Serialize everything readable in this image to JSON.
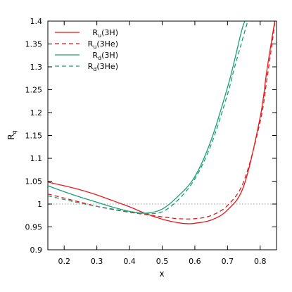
{
  "chart_data": {
    "type": "line",
    "xlabel": "x",
    "ylabel": "R",
    "ylabel_sub": "q",
    "xlim": [
      0.15,
      0.85
    ],
    "ylim": [
      0.9,
      1.4
    ],
    "xticks": [
      0.2,
      0.3,
      0.4,
      0.5,
      0.6,
      0.7,
      0.8
    ],
    "yticks": [
      0.9,
      0.95,
      1.0,
      1.05,
      1.1,
      1.15,
      1.2,
      1.25,
      1.3,
      1.35,
      1.4
    ],
    "xtick_labels": [
      "0.2",
      "0.3",
      "0.4",
      "0.5",
      "0.6",
      "0.7",
      "0.8"
    ],
    "ytick_labels": [
      "0.9",
      "0.95",
      "1",
      "1.05",
      "1.1",
      "1.15",
      "1.2",
      "1.25",
      "1.3",
      "1.35",
      "1.4"
    ],
    "grid": false,
    "legend_placement": "top-left",
    "reference_line": {
      "y": 1.0,
      "style": "dotted",
      "color": "#999999"
    },
    "series": [
      {
        "name": "Ru(3H)",
        "label_main": "R",
        "label_sub": "u",
        "label_tail": "(3H)",
        "color": "#e41a1c",
        "dash": "solid",
        "x": [
          0.15,
          0.2,
          0.25,
          0.3,
          0.35,
          0.4,
          0.45,
          0.5,
          0.55,
          0.58,
          0.6,
          0.65,
          0.7,
          0.75,
          0.8,
          0.82,
          0.84,
          0.845
        ],
        "y": [
          1.048,
          1.04,
          1.031,
          1.02,
          1.007,
          0.994,
          0.979,
          0.967,
          0.959,
          0.957,
          0.958,
          0.965,
          0.987,
          1.04,
          1.19,
          1.29,
          1.38,
          1.4
        ]
      },
      {
        "name": "Ru(3He)",
        "label_main": "R",
        "label_sub": "u",
        "label_tail": "(3He)",
        "color": "#e41a1c",
        "dash": "6,4",
        "x": [
          0.15,
          0.2,
          0.25,
          0.3,
          0.35,
          0.4,
          0.45,
          0.5,
          0.55,
          0.6,
          0.65,
          0.7,
          0.75,
          0.8,
          0.82,
          0.84,
          0.845
        ],
        "y": [
          1.022,
          1.013,
          1.004,
          0.995,
          0.988,
          0.982,
          0.977,
          0.972,
          0.968,
          0.968,
          0.975,
          0.997,
          1.05,
          1.18,
          1.27,
          1.37,
          1.4
        ]
      },
      {
        "name": "Rd(3H)",
        "label_main": "R",
        "label_sub": "d",
        "label_tail": "(3H)",
        "color": "#1a9e77",
        "dash": "solid",
        "x": [
          0.15,
          0.2,
          0.25,
          0.3,
          0.35,
          0.4,
          0.45,
          0.5,
          0.55,
          0.6,
          0.65,
          0.7,
          0.72,
          0.74,
          0.75,
          0.755
        ],
        "y": [
          1.04,
          1.027,
          1.015,
          1.004,
          0.993,
          0.984,
          0.98,
          0.989,
          1.018,
          1.06,
          1.14,
          1.255,
          1.31,
          1.37,
          1.395,
          1.4
        ]
      },
      {
        "name": "Rd(3He)",
        "label_main": "R",
        "label_sub": "d",
        "label_tail": "(3He)",
        "color": "#1a9e77",
        "dash": "6,4",
        "x": [
          0.15,
          0.2,
          0.25,
          0.3,
          0.35,
          0.4,
          0.45,
          0.5,
          0.55,
          0.6,
          0.65,
          0.7,
          0.72,
          0.74,
          0.76,
          0.765
        ],
        "y": [
          1.018,
          1.01,
          1.002,
          0.995,
          0.989,
          0.983,
          0.979,
          0.983,
          1.01,
          1.055,
          1.13,
          1.24,
          1.295,
          1.345,
          1.395,
          1.4
        ]
      }
    ]
  }
}
